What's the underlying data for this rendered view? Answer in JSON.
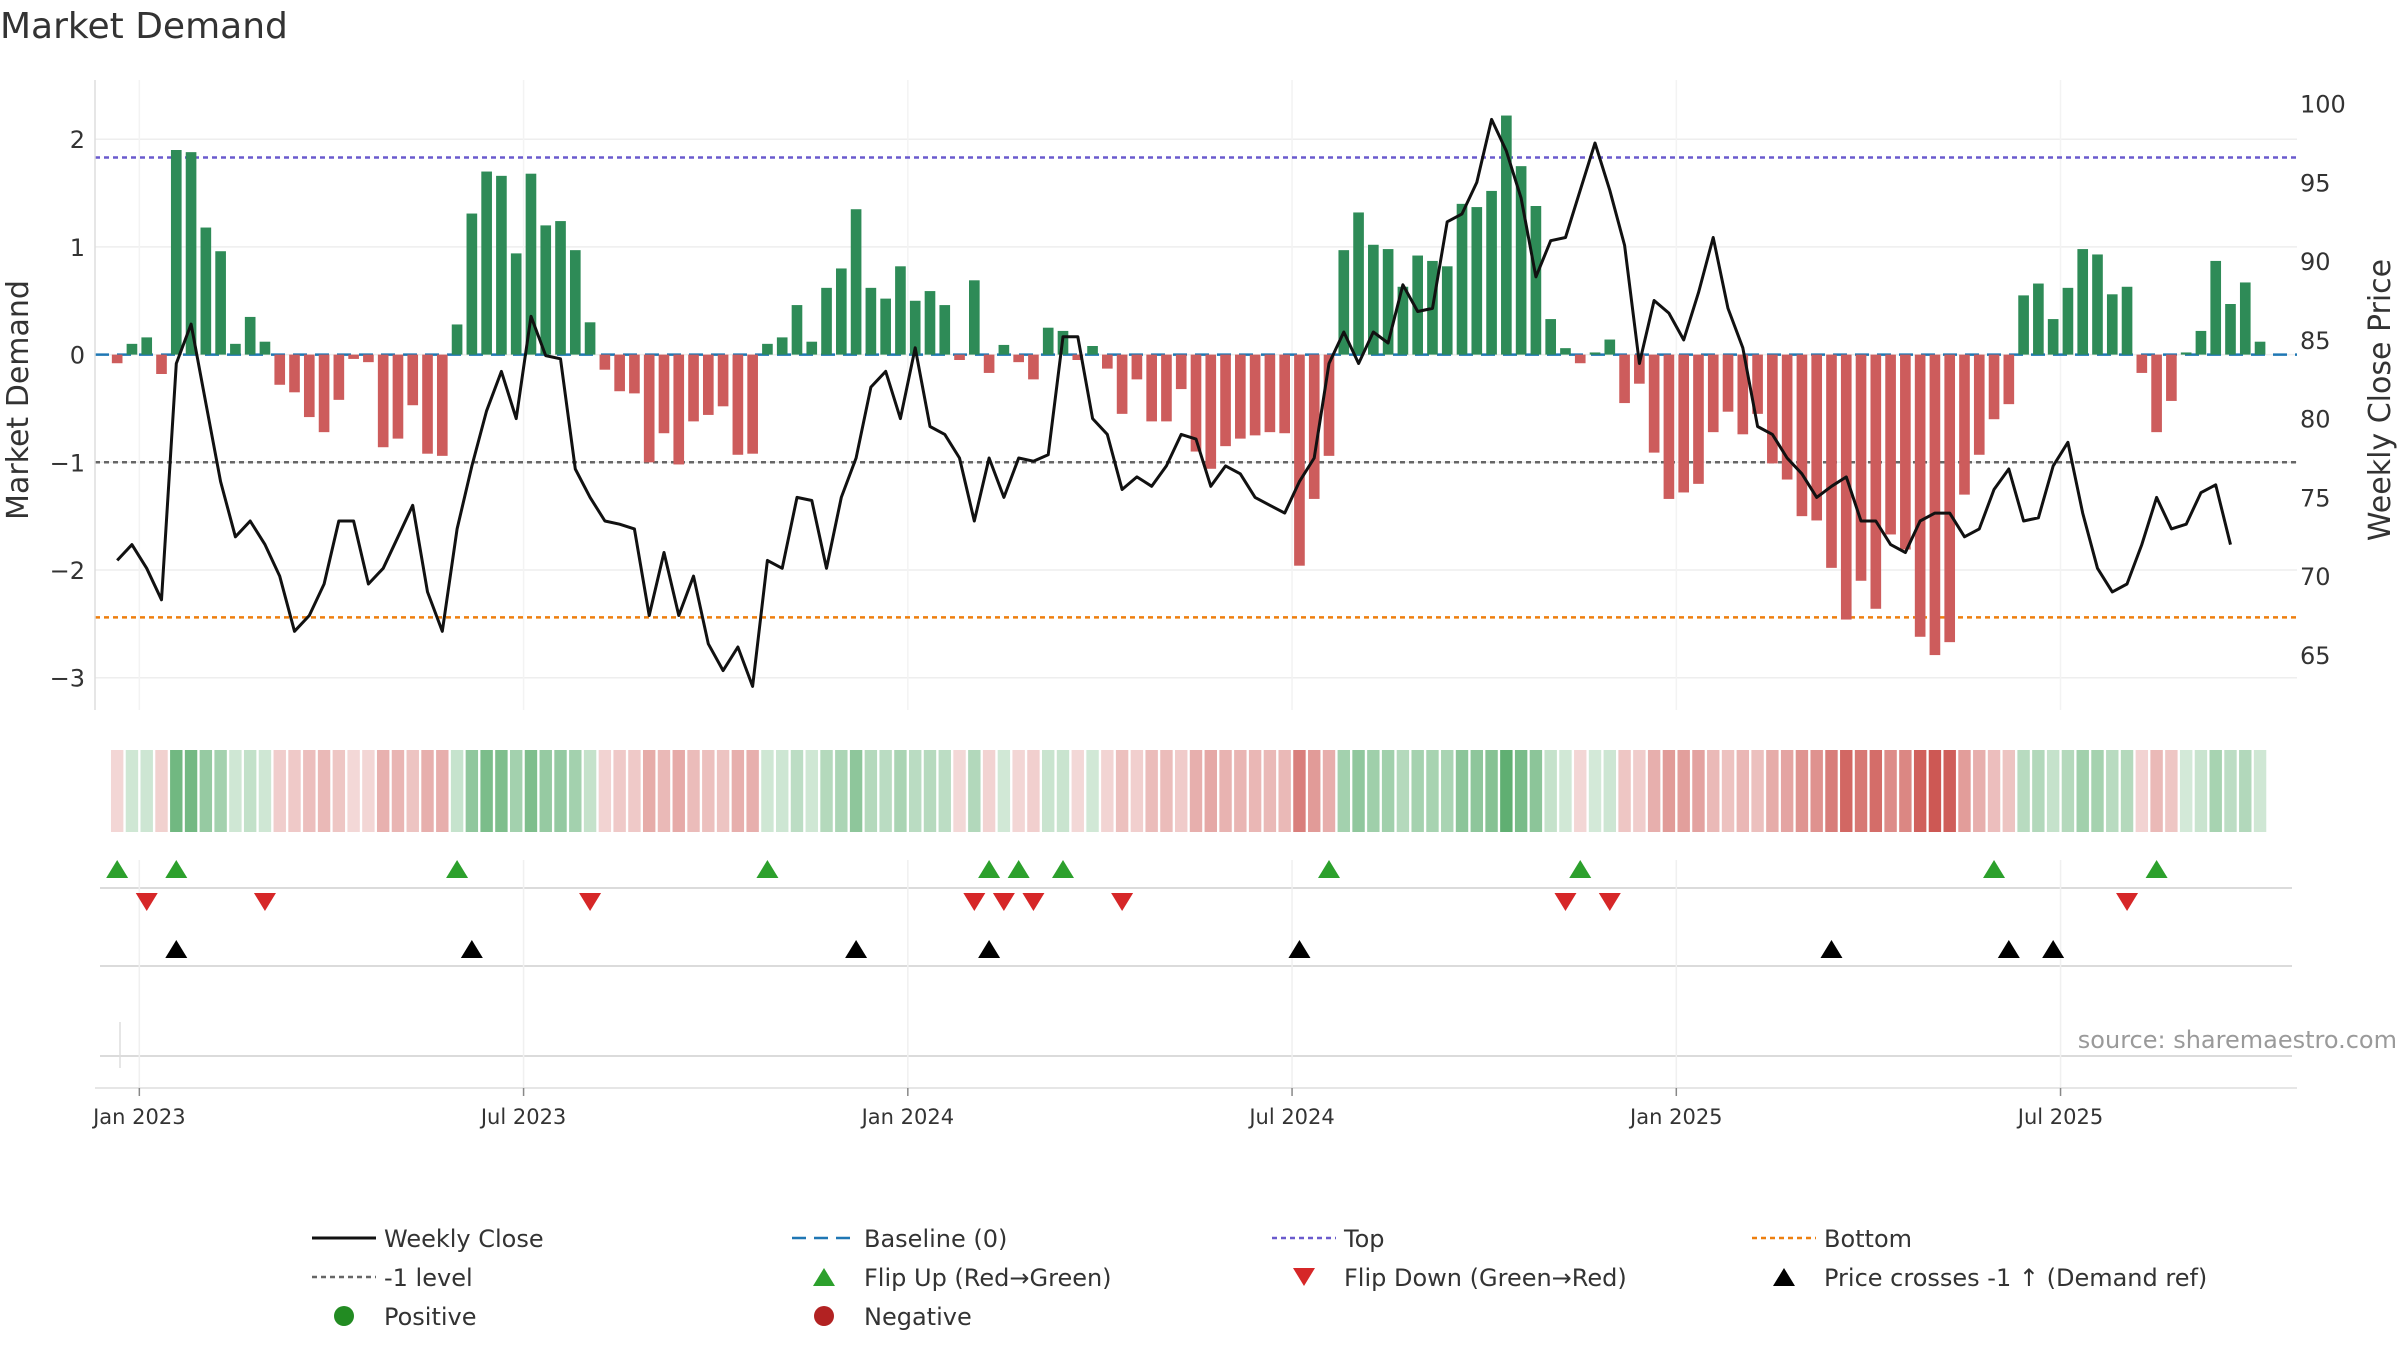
{
  "chart_data": {
    "type": "bar",
    "title": "Market Demand",
    "ylabel": "Market Demand",
    "y2label": "Weekly Close Price",
    "ylim": [
      -3.3,
      2.55
    ],
    "y2lim": [
      61.5,
      101.5
    ],
    "yticks": [
      2,
      1,
      0,
      -1,
      -2,
      -3
    ],
    "ytick_labels": [
      "2",
      "1",
      "0",
      "−1",
      "−2",
      "−3"
    ],
    "y2ticks": [
      100,
      95,
      90,
      85,
      80,
      75,
      70,
      65
    ],
    "y2tick_labels": [
      "100",
      "95",
      "90",
      "85",
      "80",
      "75",
      "70",
      "65"
    ],
    "x_domain": [
      -1.5,
      147.5
    ],
    "x_axis_ticks": [
      {
        "label": "Jan 2023",
        "x": 1.5
      },
      {
        "label": "Jul 2023",
        "x": 27.5
      },
      {
        "label": "Jan 2024",
        "x": 53.5
      },
      {
        "label": "Jul 2024",
        "x": 79.5
      },
      {
        "label": "Jan 2025",
        "x": 105.5
      },
      {
        "label": "Jul 2025",
        "x": 131.5
      }
    ],
    "reference_lines": {
      "top": 1.83,
      "bottom": -2.44,
      "minus_one": -1,
      "baseline": 0
    },
    "demand": [
      -0.08,
      0.1,
      0.16,
      -0.18,
      1.9,
      1.88,
      1.18,
      0.96,
      0.1,
      0.35,
      0.12,
      -0.28,
      -0.35,
      -0.58,
      -0.72,
      -0.42,
      -0.04,
      -0.07,
      -0.86,
      -0.78,
      -0.47,
      -0.92,
      -0.94,
      0.28,
      1.31,
      1.7,
      1.66,
      0.94,
      1.68,
      1.2,
      1.24,
      0.97,
      0.3,
      -0.14,
      -0.34,
      -0.36,
      -1.0,
      -0.73,
      -1.02,
      -0.62,
      -0.56,
      -0.48,
      -0.93,
      -0.92,
      0.1,
      0.16,
      0.46,
      0.12,
      0.62,
      0.8,
      1.35,
      0.62,
      0.52,
      0.82,
      0.5,
      0.59,
      0.46,
      -0.05,
      0.69,
      -0.17,
      0.09,
      -0.07,
      -0.23,
      0.25,
      0.22,
      -0.05,
      0.08,
      -0.13,
      -0.55,
      -0.23,
      -0.62,
      -0.62,
      -0.32,
      -0.9,
      -1.06,
      -0.85,
      -0.78,
      -0.75,
      -0.72,
      -0.73,
      -1.96,
      -1.34,
      -0.94,
      0.97,
      1.32,
      1.02,
      0.98,
      0.63,
      0.92,
      0.87,
      0.82,
      1.4,
      1.37,
      1.52,
      2.22,
      1.75,
      1.38,
      0.33,
      0.06,
      -0.08,
      0.02,
      0.14,
      -0.45,
      -0.27,
      -0.91,
      -1.34,
      -1.28,
      -1.2,
      -0.72,
      -0.53,
      -0.74,
      -0.55,
      -1.01,
      -1.16,
      -1.5,
      -1.54,
      -1.98,
      -2.46,
      -2.1,
      -2.36,
      -1.67,
      -1.81,
      -2.62,
      -2.79,
      -2.67,
      -1.3,
      -0.93,
      -0.6,
      -0.46,
      0.55,
      0.66,
      0.33,
      0.62,
      0.98,
      0.93,
      0.56,
      0.63,
      -0.17,
      -0.72,
      -0.43,
      0.02,
      0.22,
      0.87,
      0.47,
      0.67,
      0.12
    ],
    "weekly_close": [
      71,
      72,
      70.5,
      68.5,
      83.5,
      86,
      81,
      76,
      72.5,
      73.5,
      72,
      70,
      66.5,
      67.5,
      69.5,
      73.5,
      73.5,
      69.5,
      70.5,
      72.5,
      74.5,
      69,
      66.5,
      73,
      77,
      80.5,
      83,
      80,
      86.5,
      84,
      83.8,
      76.8,
      75,
      73.5,
      73.3,
      73,
      67.5,
      71.5,
      67.5,
      70,
      65.7,
      64,
      65.5,
      63,
      71,
      70.5,
      75,
      74.8,
      70.5,
      75,
      77.5,
      82,
      83,
      80,
      84.5,
      79.5,
      79,
      77.5,
      73.5,
      77.5,
      75,
      77.5,
      77.3,
      77.7,
      85.2,
      85.2,
      80,
      79,
      75.5,
      76.3,
      75.7,
      77,
      79,
      78.7,
      75.7,
      77,
      76.5,
      75,
      74.5,
      74,
      76,
      77.5,
      83.5,
      85.5,
      83.5,
      85.5,
      84.8,
      88.5,
      86.8,
      87,
      92.5,
      93,
      95,
      99,
      97,
      94,
      89,
      91.3,
      91.5,
      94.5,
      97.5,
      94.5,
      91,
      83.5,
      87.5,
      86.7,
      85,
      88,
      91.5,
      87,
      84.5,
      79.5,
      79,
      77.5,
      76.5,
      75,
      75.7,
      76.3,
      73.5,
      73.5,
      72,
      71.5,
      73.5,
      74,
      74,
      72.5,
      73,
      75.5,
      76.8,
      73.5,
      73.7,
      77,
      78.5,
      74,
      70.5,
      69,
      69.5,
      72,
      75,
      73,
      73.3,
      75.3,
      75.8,
      72
    ],
    "signals": {
      "flip_up": [
        0,
        4,
        23,
        44,
        59,
        61,
        64,
        82,
        99,
        127,
        138
      ],
      "flip_down": [
        2,
        10,
        32,
        58,
        60,
        62,
        68,
        98,
        101,
        136
      ],
      "price_crosses": [
        4,
        24,
        50,
        59,
        80,
        116,
        128,
        131
      ]
    },
    "colors": {
      "positive_bar": "#2e8b57",
      "negative_bar": "#cd5c5c",
      "close_line": "#111111",
      "baseline": "#1f77b4",
      "top_line": "#6a5acd",
      "bottom_line": "#ee7f0e",
      "minus_one_line": "#666666",
      "flip_up": "#2ca02c",
      "flip_down": "#d62728",
      "cross": "#000000",
      "positive_marker": "#228b22",
      "negative_marker": "#b22222"
    },
    "legend": [
      {
        "key": "weekly_close",
        "label": "Weekly Close"
      },
      {
        "key": "baseline",
        "label": "Baseline (0)"
      },
      {
        "key": "top",
        "label": "Top"
      },
      {
        "key": "bottom",
        "label": "Bottom"
      },
      {
        "key": "minus_one",
        "label": "-1 level"
      },
      {
        "key": "flip_up",
        "label": "Flip Up (Red→Green)"
      },
      {
        "key": "flip_down",
        "label": "Flip Down (Green→Red)"
      },
      {
        "key": "price_cross",
        "label": "Price crosses -1 ↑ (Demand ref)"
      },
      {
        "key": "positive",
        "label": "Positive"
      },
      {
        "key": "negative",
        "label": "Negative"
      }
    ]
  },
  "source_text": "source: sharemaestro.com"
}
